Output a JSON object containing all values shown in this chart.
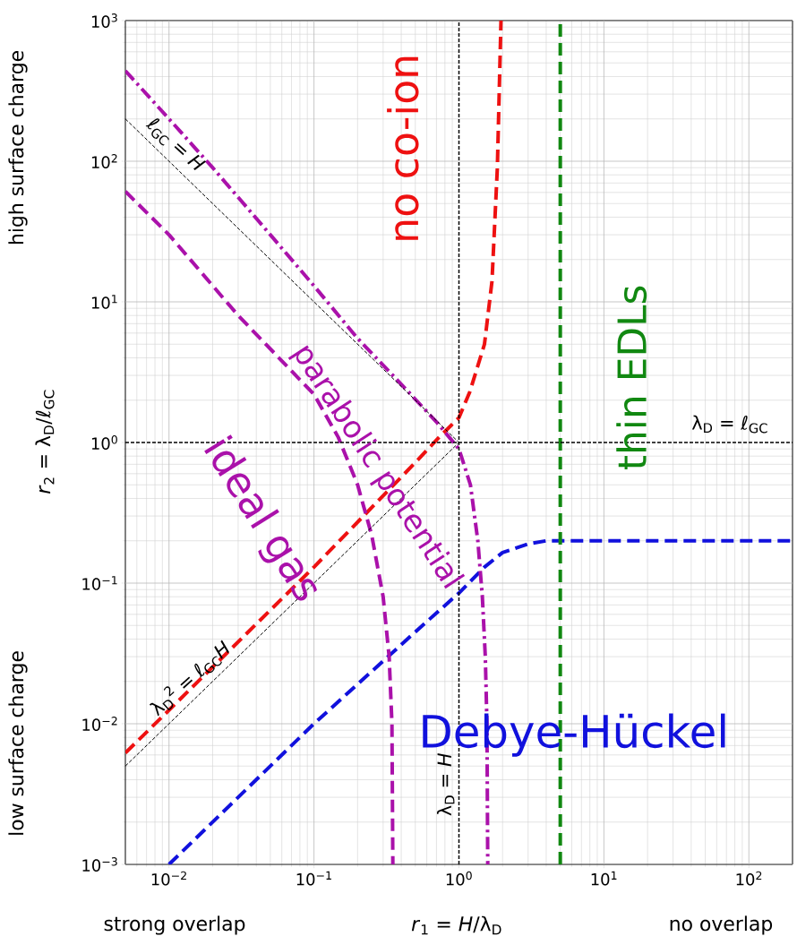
{
  "chart_data": {
    "type": "line",
    "xlabel": "*r*$_{1}$ = *H*/λ$_{D}$",
    "ylabel": "*r*$_{2}$ = λ$_{D}$/ℓ$_{GC}$",
    "xlim": [
      0.005,
      200
    ],
    "ylim": [
      0.001,
      1000
    ],
    "xticks": [
      {
        "value": 0.01,
        "label": "10$^{−2}$"
      },
      {
        "value": 0.1,
        "label": "10$^{−1}$"
      },
      {
        "value": 1,
        "label": "10$^{0}$"
      },
      {
        "value": 10,
        "label": "10$^{1}$"
      },
      {
        "value": 100,
        "label": "10$^{2}$"
      }
    ],
    "yticks": [
      {
        "value": 0.001,
        "label": "10$^{−3}$"
      },
      {
        "value": 0.01,
        "label": "10$^{−2}$"
      },
      {
        "value": 0.1,
        "label": "10$^{−1}$"
      },
      {
        "value": 1,
        "label": "10$^{0}$"
      },
      {
        "value": 10,
        "label": "10$^{1}$"
      },
      {
        "value": 100,
        "label": "10$^{2}$"
      },
      {
        "value": 1000,
        "label": "10$^{3}$"
      }
    ],
    "log": "xy",
    "grid": true,
    "series": [
      {
        "name": "no co-ion",
        "color": "#ee1111",
        "line_style": "dashed",
        "x": [
          0.005,
          0.01,
          0.1,
          0.5,
          0.73,
          1.0,
          1.19,
          1.5,
          1.69,
          1.84,
          1.95
        ],
        "values": [
          0.0062,
          0.0125,
          0.13,
          0.72,
          1.09,
          1.5,
          2.3,
          5,
          14,
          89,
          1000
        ]
      },
      {
        "name": "Debye-Hückel",
        "color": "#1111dd",
        "line_style": "dashed",
        "x": [
          0.01,
          0.1,
          0.5,
          1,
          1.5,
          2,
          3,
          4,
          5,
          200
        ],
        "values": [
          0.001,
          0.01,
          0.045,
          0.085,
          0.13,
          0.165,
          0.19,
          0.2,
          0.2,
          0.2
        ]
      },
      {
        "name": "thin EDLs",
        "color": "#118811",
        "line_style": "dashed",
        "x": [
          5,
          5
        ],
        "values": [
          0.001,
          1000
        ]
      },
      {
        "name": "ideal gas",
        "color": "#aa11aa",
        "line_style": "dashed",
        "x": [
          0.005,
          0.01,
          0.03,
          0.1,
          0.147,
          0.2,
          0.25,
          0.3,
          0.33,
          0.345,
          0.35
        ],
        "values": [
          61,
          30,
          8,
          2.2,
          1.09,
          0.5,
          0.22,
          0.08,
          0.03,
          0.01,
          0.001
        ]
      },
      {
        "name": "parabolic potential",
        "color": "#aa11aa",
        "line_style": "dashdot",
        "x": [
          0.005,
          0.01,
          0.02,
          0.05,
          0.1,
          0.2,
          0.43,
          0.7,
          1.0,
          1.2,
          1.35,
          1.45,
          1.52,
          1.56,
          1.58
        ],
        "values": [
          440,
          200,
          90,
          30,
          13,
          5.5,
          2.4,
          1.4,
          0.9,
          0.5,
          0.2,
          0.08,
          0.03,
          0.01,
          0.001
        ]
      },
      {
        "name": "ℓ$_{GC}$ = *H*",
        "color": "#000000",
        "line_style": "dashed",
        "x": [
          0.005,
          1
        ],
        "values": [
          200,
          1
        ]
      },
      {
        "name": "λ$_{D}$$^{2}$ = ℓ$_{GC}$*H*",
        "color": "#000000",
        "line_style": "dashed",
        "x": [
          0.005,
          1
        ],
        "values": [
          0.005,
          1
        ]
      },
      {
        "name": "λ$_{D}$ = *H*",
        "color": "#000000",
        "line_style": "dashed",
        "x": [
          1,
          1
        ],
        "values": [
          0.001,
          1000
        ]
      },
      {
        "name": "λ$_{D}$ = ℓ$_{GC}$",
        "color": "#000000",
        "line_style": "dashed",
        "x": [
          0.005,
          200
        ],
        "values": [
          1,
          1
        ]
      }
    ],
    "annotations": [
      "high surface charge",
      "low surface charge",
      "strong overlap",
      "no overlap"
    ]
  }
}
